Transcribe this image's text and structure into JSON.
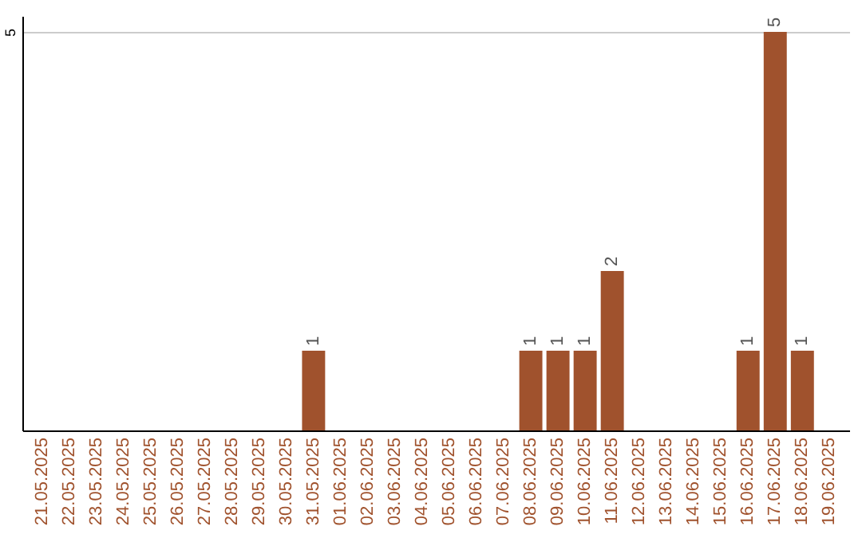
{
  "chart_data": {
    "type": "bar",
    "categories": [
      "21.05.2025",
      "22.05.2025",
      "23.05.2025",
      "24.05.2025",
      "25.05.2025",
      "26.05.2025",
      "27.05.2025",
      "28.05.2025",
      "29.05.2025",
      "30.05.2025",
      "31.05.2025",
      "01.06.2025",
      "02.06.2025",
      "03.06.2025",
      "04.06.2025",
      "05.06.2025",
      "06.06.2025",
      "07.06.2025",
      "08.06.2025",
      "09.06.2025",
      "10.06.2025",
      "11.06.2025",
      "12.06.2025",
      "13.06.2025",
      "14.06.2025",
      "15.06.2025",
      "16.06.2025",
      "17.06.2025",
      "18.06.2025",
      "19.06.2025"
    ],
    "values": [
      0,
      0,
      0,
      0,
      0,
      0,
      0,
      0,
      0,
      0,
      1,
      0,
      0,
      0,
      0,
      0,
      0,
      0,
      1,
      1,
      1,
      2,
      0,
      0,
      0,
      0,
      1,
      5,
      1,
      0
    ],
    "value_labels": [
      null,
      null,
      null,
      null,
      null,
      null,
      null,
      null,
      null,
      null,
      "1",
      null,
      null,
      null,
      null,
      null,
      null,
      null,
      "1",
      "1",
      "1",
      "2",
      null,
      null,
      null,
      null,
      "1",
      "5",
      "1",
      null
    ],
    "color": "#a0522d",
    "ylim": [
      0,
      5.2
    ],
    "yticks": [
      5
    ],
    "grid": "y"
  }
}
